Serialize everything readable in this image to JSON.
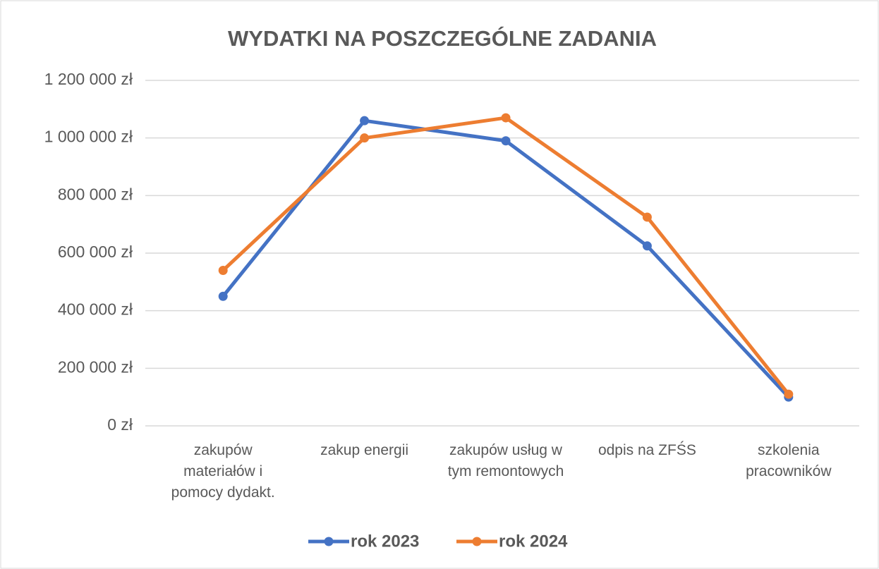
{
  "chart_data": {
    "type": "line",
    "title": "WYDATKI NA POSZCZEGÓLNE ZADANIA",
    "categories": [
      "zakupów materiałów i pomocy dydakt.",
      "zakup energii",
      "zakupów usług w tym remontowych",
      "odpis na ZFŚS",
      "szkolenia pracowników"
    ],
    "series": [
      {
        "name": "rok 2023",
        "color": "#4472c4",
        "values": [
          450000,
          1060000,
          990000,
          625000,
          100000
        ]
      },
      {
        "name": "rok 2024",
        "color": "#ed7d31",
        "values": [
          540000,
          1000000,
          1070000,
          725000,
          110000
        ]
      }
    ],
    "ylim": [
      0,
      1200000
    ],
    "yticks": [
      {
        "value": 0,
        "label": "0 zł"
      },
      {
        "value": 200000,
        "label": "200 000 zł"
      },
      {
        "value": 400000,
        "label": "400 000 zł"
      },
      {
        "value": 600000,
        "label": "600 000 zł"
      },
      {
        "value": 800000,
        "label": "800 000 zł"
      },
      {
        "value": 1000000,
        "label": "1 000 000 zł"
      },
      {
        "value": 1200000,
        "label": "1 200 000 zł"
      }
    ],
    "grid": true,
    "legend": "bottom"
  }
}
